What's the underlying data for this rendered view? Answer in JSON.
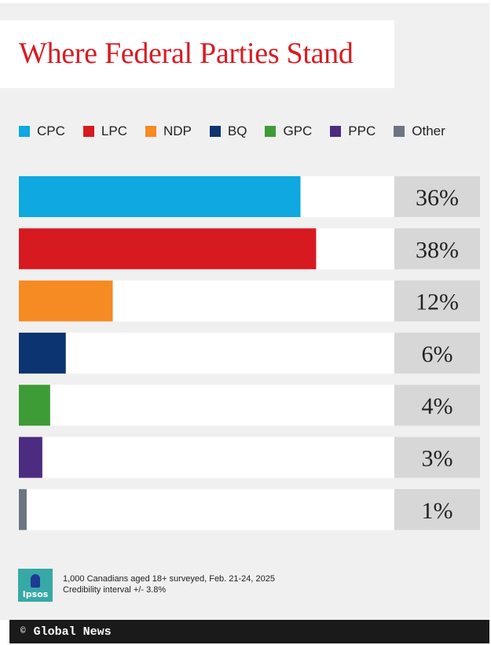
{
  "title": "Where Federal Parties Stand",
  "colors": {
    "title": "#d71c23",
    "panel_bg": "#f0f0f0",
    "track_bg": "#ffffff",
    "value_box_bg": "#d7d7d7"
  },
  "chart_data": {
    "type": "bar",
    "orientation": "horizontal",
    "title": "Where Federal Parties Stand",
    "categories": [
      "CPC",
      "LPC",
      "NDP",
      "BQ",
      "GPC",
      "PPC",
      "Other"
    ],
    "values": [
      36,
      38,
      12,
      6,
      4,
      3,
      1
    ],
    "value_labels": [
      "36%",
      "38%",
      "12%",
      "6%",
      "4%",
      "3%",
      "1%"
    ],
    "colors": [
      "#0fa8e0",
      "#d71920",
      "#f68a23",
      "#0c3470",
      "#3d9c35",
      "#4b2c80",
      "#6b7682"
    ],
    "xlim": [
      0,
      48
    ],
    "unit": "%",
    "legend": "top",
    "grid": false
  },
  "legend": [
    {
      "label": "CPC",
      "color": "#0fa8e0"
    },
    {
      "label": "LPC",
      "color": "#d71920"
    },
    {
      "label": "NDP",
      "color": "#f68a23"
    },
    {
      "label": "BQ",
      "color": "#0c3470"
    },
    {
      "label": "GPC",
      "color": "#3d9c35"
    },
    {
      "label": "PPC",
      "color": "#4b2c80"
    },
    {
      "label": "Other",
      "color": "#6b7682"
    }
  ],
  "footer": {
    "logo_text": "Ipsos",
    "note_line1": "1,000 Canadians aged 18+ surveyed, Feb. 21-24, 2025",
    "note_line2": "Credibility interval +/- 3.8%",
    "copyright_symbol": "©",
    "brand": "Global News"
  }
}
